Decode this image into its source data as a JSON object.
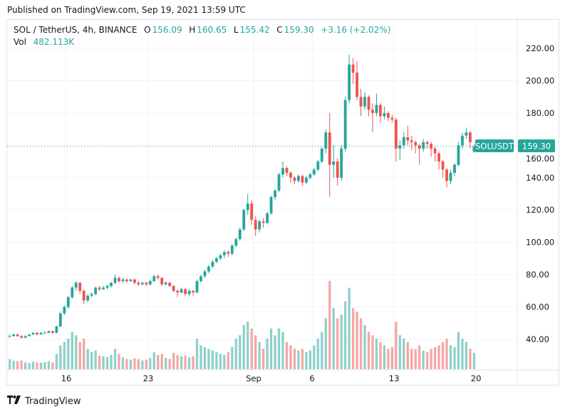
{
  "header": {
    "published": "Published on TradingView.com, Sep 19, 2021 13:59 UTC"
  },
  "legend": {
    "symbol": "SOL / TetherUS, 4h, BINANCE",
    "o_label": "O",
    "o": "156.09",
    "h_label": "H",
    "h": "160.65",
    "l_label": "L",
    "l": "155.42",
    "c_label": "C",
    "c": "159.30",
    "change": "+3.16 (+2.02%)",
    "vol_label": "Vol",
    "vol": "482.113K"
  },
  "price_tag": {
    "symbol": "SOLUSDT",
    "price": "159.30"
  },
  "footer": {
    "logo": "TradingView",
    "logo_icon": "tv-logo-icon"
  },
  "colors": {
    "up": "#26a69a",
    "down": "#ef5350",
    "up_vol": "#8fd0c9",
    "down_vol": "#f5a6a4",
    "grid": "#f0f3fa"
  },
  "chart_data": {
    "type": "candlestick",
    "title": "SOL / TetherUS, 4h, BINANCE",
    "ylim": [
      30,
      230
    ],
    "y_ticks": [
      "220.00",
      "200.00",
      "180.00",
      "160.00",
      "140.00",
      "120.00",
      "100.00",
      "80.00",
      "60.00",
      "40.00"
    ],
    "x_ticks": [
      {
        "label": "16",
        "date": "2021-08-16"
      },
      {
        "label": "23",
        "date": "2021-08-23"
      },
      {
        "label": "Sep",
        "date": "2021-09-01"
      },
      {
        "label": "6",
        "date": "2021-09-06"
      },
      {
        "label": "13",
        "date": "2021-09-13"
      },
      {
        "label": "20",
        "date": "2021-09-20"
      }
    ],
    "grid": true,
    "start_date": "2021-08-11",
    "candle_hours": 8,
    "candle_fields": [
      "open",
      "high",
      "low",
      "close",
      "volume_k"
    ],
    "candles": [
      [
        41.5,
        43,
        41,
        42,
        300
      ],
      [
        42,
        43.5,
        41.8,
        43,
        250
      ],
      [
        43,
        43.5,
        41.5,
        42,
        240
      ],
      [
        42,
        42.5,
        40.5,
        41,
        260
      ],
      [
        41,
        42.5,
        40.8,
        42,
        200
      ],
      [
        42,
        43.2,
        41.7,
        43,
        180
      ],
      [
        43,
        44.5,
        42.8,
        44,
        220
      ],
      [
        44,
        44.6,
        42.5,
        43,
        200
      ],
      [
        43,
        44.5,
        42.8,
        44,
        190
      ],
      [
        44,
        45,
        43.6,
        44,
        210
      ],
      [
        44,
        45.5,
        43.8,
        45,
        230
      ],
      [
        45,
        45.6,
        43.5,
        44,
        200
      ],
      [
        44,
        48.5,
        43.8,
        48,
        450
      ],
      [
        48,
        57,
        47.5,
        56,
        700
      ],
      [
        56,
        61,
        55,
        60,
        800
      ],
      [
        60,
        67,
        59,
        66,
        900
      ],
      [
        66,
        73,
        65,
        72,
        1100
      ],
      [
        72,
        76,
        70,
        75,
        1000
      ],
      [
        75,
        75.5,
        68,
        70,
        800
      ],
      [
        70,
        71,
        62,
        64,
        900
      ],
      [
        64,
        68,
        63,
        67,
        600
      ],
      [
        67,
        69,
        66,
        68,
        500
      ],
      [
        68,
        72.5,
        67,
        72,
        550
      ],
      [
        72,
        73,
        70,
        71,
        400
      ],
      [
        71,
        73,
        70.5,
        72,
        380
      ],
      [
        72,
        74,
        71,
        73,
        350
      ],
      [
        73,
        75.5,
        72,
        75,
        420
      ],
      [
        75,
        80,
        74,
        78,
        600
      ],
      [
        78,
        79,
        75,
        76,
        450
      ],
      [
        76,
        78,
        75,
        77,
        350
      ],
      [
        77,
        77.5,
        75,
        76,
        300
      ],
      [
        76,
        77.5,
        75.5,
        77,
        280
      ],
      [
        77,
        77.5,
        74,
        75,
        320
      ],
      [
        75,
        76,
        73,
        74,
        300
      ],
      [
        74,
        75.5,
        73.5,
        75,
        260
      ],
      [
        75,
        75.5,
        73,
        74,
        280
      ],
      [
        74,
        77,
        73.5,
        76,
        330
      ],
      [
        76,
        80,
        75.5,
        79,
        500
      ],
      [
        79,
        80,
        77,
        78,
        420
      ],
      [
        78,
        78.5,
        73,
        74,
        450
      ],
      [
        74,
        76,
        73.5,
        75,
        330
      ],
      [
        75,
        75.5,
        72.5,
        73,
        300
      ],
      [
        73,
        73.5,
        69,
        70,
        480
      ],
      [
        70,
        71,
        66,
        69,
        420
      ],
      [
        69,
        72,
        68.5,
        71,
        380
      ],
      [
        71,
        71.5,
        67,
        68,
        400
      ],
      [
        68,
        71,
        66.5,
        70,
        350
      ],
      [
        70,
        70.5,
        67,
        69,
        380
      ],
      [
        69,
        77,
        68.5,
        76,
        900
      ],
      [
        76,
        80,
        75,
        79,
        700
      ],
      [
        79,
        83,
        78,
        82,
        650
      ],
      [
        82,
        86,
        81,
        85,
        600
      ],
      [
        85,
        89,
        84,
        88,
        550
      ],
      [
        88,
        91,
        87,
        90,
        500
      ],
      [
        90,
        93,
        89,
        92,
        450
      ],
      [
        92,
        95,
        90,
        94,
        420
      ],
      [
        94,
        95,
        91,
        93,
        500
      ],
      [
        93,
        99,
        92,
        98,
        650
      ],
      [
        98,
        103,
        97,
        102,
        900
      ],
      [
        102,
        109,
        101,
        108,
        1000
      ],
      [
        108,
        121,
        107,
        120,
        1300
      ],
      [
        120,
        130,
        117,
        124,
        1400
      ],
      [
        124,
        126,
        111,
        114,
        1200
      ],
      [
        114,
        116,
        104,
        108,
        1000
      ],
      [
        108,
        114,
        106,
        113,
        800
      ],
      [
        113,
        115,
        109,
        112,
        600
      ],
      [
        112,
        119,
        111,
        118,
        900
      ],
      [
        118,
        129,
        117,
        128,
        1200
      ],
      [
        128,
        133,
        126,
        132,
        1000
      ],
      [
        132,
        143,
        131,
        142,
        1200
      ],
      [
        142,
        150,
        140,
        146,
        1100
      ],
      [
        146,
        147,
        141,
        143,
        800
      ],
      [
        143,
        144,
        137,
        140,
        700
      ],
      [
        140,
        141,
        136,
        138,
        600
      ],
      [
        138,
        142,
        137,
        141,
        550
      ],
      [
        141,
        142,
        135,
        137,
        600
      ],
      [
        137,
        141,
        136,
        140,
        500
      ],
      [
        140,
        143,
        139,
        142,
        550
      ],
      [
        142,
        146,
        141,
        145,
        700
      ],
      [
        145,
        151,
        144,
        150,
        900
      ],
      [
        150,
        159,
        149,
        158,
        1100
      ],
      [
        158,
        170,
        155,
        168,
        1500
      ],
      [
        168,
        180,
        128,
        148,
        2600
      ],
      [
        148,
        160,
        140,
        150,
        1800
      ],
      [
        150,
        152,
        135,
        140,
        1500
      ],
      [
        140,
        160,
        138,
        158,
        1600
      ],
      [
        158,
        190,
        156,
        188,
        2000
      ],
      [
        188,
        216,
        186,
        210,
        2400
      ],
      [
        210,
        214,
        198,
        205,
        1800
      ],
      [
        205,
        212,
        188,
        190,
        1700
      ],
      [
        190,
        195,
        178,
        184,
        1500
      ],
      [
        184,
        193,
        182,
        190,
        1300
      ],
      [
        190,
        191,
        178,
        182,
        1100
      ],
      [
        182,
        186,
        168,
        180,
        1000
      ],
      [
        180,
        192,
        178,
        185,
        900
      ],
      [
        185,
        186,
        174,
        178,
        800
      ],
      [
        178,
        184,
        176,
        180,
        700
      ],
      [
        180,
        181,
        175,
        177,
        600
      ],
      [
        177,
        179,
        174,
        176,
        650
      ],
      [
        176,
        177,
        150,
        158,
        1400
      ],
      [
        158,
        163,
        151,
        160,
        1000
      ],
      [
        160,
        168,
        158,
        165,
        900
      ],
      [
        165,
        172,
        160,
        163,
        800
      ],
      [
        163,
        166,
        157,
        162,
        600
      ],
      [
        162,
        163,
        155,
        160,
        600
      ],
      [
        160,
        161,
        148,
        158,
        700
      ],
      [
        158,
        164,
        156,
        162,
        550
      ],
      [
        162,
        163,
        158,
        161,
        500
      ],
      [
        161,
        162,
        153,
        158,
        600
      ],
      [
        158,
        159,
        150,
        155,
        650
      ],
      [
        155,
        156,
        145,
        150,
        700
      ],
      [
        150,
        151,
        140,
        145,
        800
      ],
      [
        145,
        146,
        134,
        138,
        900
      ],
      [
        138,
        145,
        136,
        143,
        700
      ],
      [
        143,
        149,
        141,
        148,
        650
      ],
      [
        148,
        162,
        147,
        160,
        1100
      ],
      [
        160,
        168,
        158,
        166,
        900
      ],
      [
        166,
        171,
        164,
        168,
        800
      ],
      [
        168,
        169,
        158,
        162,
        600
      ],
      [
        156.09,
        160.65,
        155.42,
        159.3,
        482.113
      ]
    ],
    "last_price": 159.3
  }
}
